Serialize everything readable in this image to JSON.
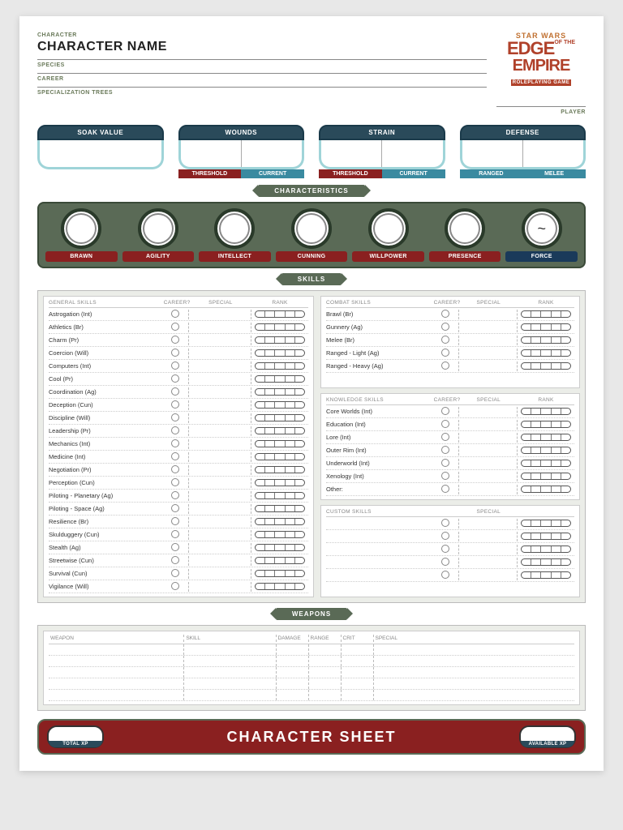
{
  "header": {
    "character_label": "CHARACTER",
    "character_name": "CHARACTER NAME",
    "species_label": "SPECIES",
    "career_label": "CAREER",
    "specialization_label": "SPECIALIZATION TREES",
    "player_label": "PLAYER",
    "logo": {
      "line1": "STAR WARS",
      "line2a": "EDGE",
      "line2b": "OF THE",
      "line3": "EMPIRE",
      "line4": "ROLEPLAYING GAME"
    }
  },
  "stats": {
    "soak": {
      "label": "SOAK VALUE"
    },
    "wounds": {
      "label": "WOUNDS",
      "sub1": "THRESHOLD",
      "sub2": "CURRENT"
    },
    "strain": {
      "label": "STRAIN",
      "sub1": "THRESHOLD",
      "sub2": "CURRENT"
    },
    "defense": {
      "label": "DEFENSE",
      "sub1": "RANGED",
      "sub2": "MELEE"
    }
  },
  "banners": {
    "characteristics": "CHARACTERISTICS",
    "skills": "SKILLS",
    "weapons": "WEAPONS"
  },
  "characteristics": [
    {
      "label": "BRAWN",
      "value": ""
    },
    {
      "label": "AGILITY",
      "value": ""
    },
    {
      "label": "INTELLECT",
      "value": ""
    },
    {
      "label": "CUNNING",
      "value": ""
    },
    {
      "label": "WILLPOWER",
      "value": ""
    },
    {
      "label": "PRESENCE",
      "value": ""
    },
    {
      "label": "FORCE",
      "value": "~",
      "force": true
    }
  ],
  "skill_headers": {
    "general": "GENERAL SKILLS",
    "combat": "COMBAT SKILLS",
    "knowledge": "KNOWLEDGE SKILLS",
    "custom": "CUSTOM SKILLS",
    "career": "CAREER?",
    "special": "SPECIAL",
    "rank": "RANK"
  },
  "general_skills": [
    "Astrogation (Int)",
    "Athletics (Br)",
    "Charm (Pr)",
    "Coercion (Will)",
    "Computers (Int)",
    "Cool (Pr)",
    "Coordination (Ag)",
    "Deception (Cun)",
    "Discipline (Will)",
    "Leadership (Pr)",
    "Mechanics (Int)",
    "Medicine (Int)",
    "Negotiation (Pr)",
    "Perception (Cun)",
    "Piloting - Planetary (Ag)",
    "Piloting - Space (Ag)",
    "Resilience (Br)",
    "Skulduggery (Cun)",
    "Stealth (Ag)",
    "Streetwise (Cun)",
    "Survival (Cun)",
    "Vigilance (Will)"
  ],
  "combat_skills": [
    "Brawl (Br)",
    "Gunnery (Ag)",
    "Melee (Br)",
    "Ranged - Light (Ag)",
    "Ranged - Heavy (Ag)"
  ],
  "knowledge_skills": [
    "Core Worlds (Int)",
    "Education (Int)",
    "Lore (Int)",
    "Outer Rim (Int)",
    "Underworld (Int)",
    "Xenology (Int)",
    "Other:"
  ],
  "custom_skill_rows": 5,
  "weapons": {
    "headers": [
      "WEAPON",
      "SKILL",
      "DAMAGE",
      "RANGE",
      "CRIT",
      "SPECIAL"
    ],
    "rows": 5
  },
  "footer": {
    "title": "CHARACTER SHEET",
    "total_xp": "TOTAL XP",
    "available_xp": "AVAILABLE XP"
  },
  "colors": {
    "olive": "#5a6a56",
    "crimson": "#8a2020",
    "teal_border": "#9fd4d8",
    "dark_blue": "#2a4a5a",
    "logo_red": "#b0412a"
  }
}
